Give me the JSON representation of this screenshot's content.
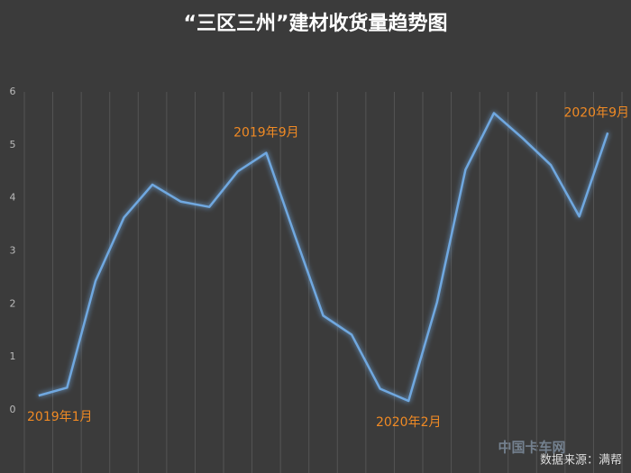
{
  "chart_data": {
    "type": "line",
    "title": "“三区三州”建材收货量趋势图",
    "categories": [
      "2019年1月",
      null,
      null,
      null,
      null,
      null,
      null,
      null,
      "2019年9月",
      null,
      null,
      null,
      null,
      "2020年2月",
      null,
      null,
      null,
      null,
      null,
      null,
      "2020年9月"
    ],
    "series": [
      {
        "color": "#6fa8e0",
        "values": [
          0.27,
          0.42,
          2.43,
          3.63,
          4.25,
          3.93,
          3.83,
          4.5,
          4.85,
          3.3,
          1.78,
          1.42,
          0.4,
          0.17,
          2.03,
          4.53,
          5.6,
          5.13,
          4.62,
          3.65,
          5.23
        ]
      }
    ],
    "label_color": "#f08a24",
    "ylim": [
      0,
      6
    ],
    "yticks": [
      0,
      1,
      2,
      3,
      4,
      5,
      6
    ],
    "xgrid": true,
    "source": "数据来源：满帮",
    "watermark": "中国卡车网"
  }
}
